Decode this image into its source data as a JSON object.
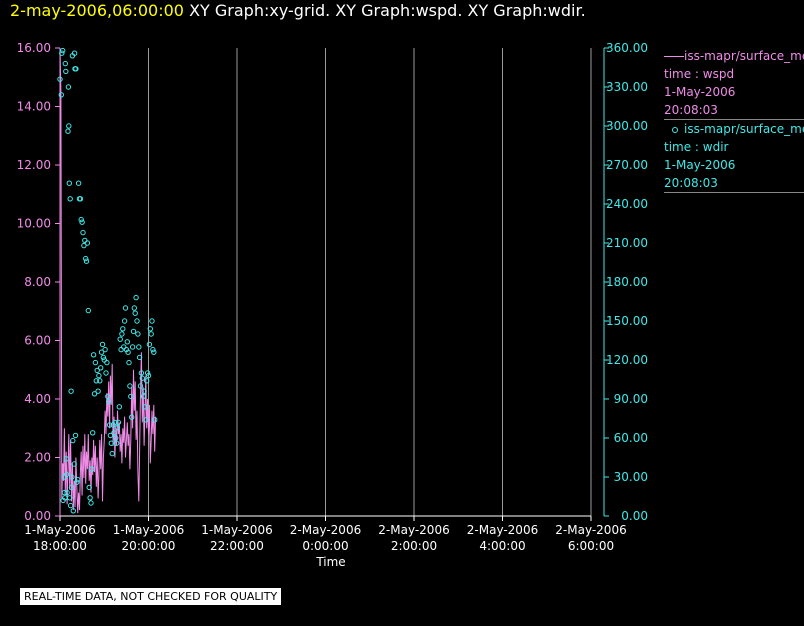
{
  "header": {
    "timestamp": "2-may-2006,06:00:00",
    "graphs": "XY Graph:xy-grid.  XY Graph:wspd.  XY Graph:wdir."
  },
  "colors": {
    "wspd": "#f08ce8",
    "wdir": "#40e8e8",
    "left_axis": "#f08ce8",
    "right_axis": "#40e8e8",
    "grid": "#9a9a9a",
    "timestamp": "#ffff00"
  },
  "legend": [
    {
      "name": "iss-mapr/surface_met",
      "time_label": "time : wspd",
      "date": "1-May-2006",
      "time": "20:08:03",
      "marker": "line"
    },
    {
      "name": "iss-mapr/surface_met",
      "time_label": "time : wdir",
      "date": "1-May-2006",
      "time": "20:08:03",
      "marker": "circle"
    }
  ],
  "footer": {
    "disclaimer": "REAL-TIME DATA, NOT CHECKED FOR QUALITY"
  },
  "chart_data": {
    "type": "line",
    "xlabel": "Time",
    "x_ticks": [
      {
        "hours": 0,
        "date": "1-May-2006",
        "time": "18:00:00"
      },
      {
        "hours": 2,
        "date": "1-May-2006",
        "time": "20:00:00"
      },
      {
        "hours": 4,
        "date": "1-May-2006",
        "time": "22:00:00"
      },
      {
        "hours": 6,
        "date": "2-May-2006",
        "time": "0:00:00"
      },
      {
        "hours": 8,
        "date": "2-May-2006",
        "time": "2:00:00"
      },
      {
        "hours": 10,
        "date": "2-May-2006",
        "time": "4:00:00"
      },
      {
        "hours": 12,
        "date": "2-May-2006",
        "time": "6:00:00"
      }
    ],
    "x_range_hours": [
      0,
      12
    ],
    "grid": true,
    "y_left": {
      "range": [
        0,
        16
      ],
      "ticks": [
        "0.00",
        "2.00",
        "4.00",
        "6.00",
        "8.00",
        "10.00",
        "12.00",
        "14.00",
        "16.00"
      ]
    },
    "y_right": {
      "range": [
        0,
        360
      ],
      "ticks": [
        "0.00",
        "30.00",
        "60.00",
        "90.00",
        "120.00",
        "150.00",
        "180.00",
        "210.00",
        "240.00",
        "270.00",
        "300.00",
        "330.00",
        "360.00"
      ]
    },
    "series": [
      {
        "key": "wspd",
        "axis": "left",
        "style": "line",
        "points": [
          [
            0.0,
            16.0
          ],
          [
            0.02,
            14.5
          ],
          [
            0.04,
            0.6
          ],
          [
            0.06,
            1.8
          ],
          [
            0.08,
            1.2
          ],
          [
            0.1,
            3.0
          ],
          [
            0.12,
            0.8
          ],
          [
            0.14,
            2.2
          ],
          [
            0.16,
            0.4
          ],
          [
            0.18,
            1.6
          ],
          [
            0.2,
            2.8
          ],
          [
            0.22,
            0.9
          ],
          [
            0.24,
            2.6
          ],
          [
            0.26,
            0.5
          ],
          [
            0.28,
            1.8
          ],
          [
            0.3,
            0.2
          ],
          [
            0.32,
            1.2
          ],
          [
            0.34,
            0.3
          ],
          [
            0.36,
            2.0
          ],
          [
            0.38,
            1.0
          ],
          [
            0.4,
            0.1
          ],
          [
            0.42,
            0.8
          ],
          [
            0.44,
            0.2
          ],
          [
            0.46,
            1.5
          ],
          [
            0.48,
            2.2
          ],
          [
            0.5,
            0.7
          ],
          [
            0.52,
            2.4
          ],
          [
            0.54,
            1.3
          ],
          [
            0.56,
            2.8
          ],
          [
            0.58,
            1.1
          ],
          [
            0.6,
            2.2
          ],
          [
            0.62,
            1.6
          ],
          [
            0.64,
            2.8
          ],
          [
            0.66,
            1.2
          ],
          [
            0.68,
            1.9
          ],
          [
            0.7,
            0.8
          ],
          [
            0.72,
            2.0
          ],
          [
            0.74,
            1.4
          ],
          [
            0.76,
            2.6
          ],
          [
            0.78,
            1.5
          ],
          [
            0.8,
            2.4
          ],
          [
            0.82,
            1.0
          ],
          [
            0.84,
            2.0
          ],
          [
            0.86,
            0.6
          ],
          [
            0.88,
            1.4
          ],
          [
            0.9,
            2.6
          ],
          [
            0.92,
            1.6
          ],
          [
            0.94,
            2.8
          ],
          [
            0.96,
            0.5
          ],
          [
            0.98,
            2.0
          ],
          [
            1.0,
            2.6
          ],
          [
            1.02,
            3.6
          ],
          [
            1.04,
            2.8
          ],
          [
            1.06,
            4.2
          ],
          [
            1.08,
            3.4
          ],
          [
            1.1,
            4.6
          ],
          [
            1.12,
            3.0
          ],
          [
            1.14,
            4.8
          ],
          [
            1.16,
            3.8
          ],
          [
            1.18,
            5.2
          ],
          [
            1.2,
            2.4
          ],
          [
            1.22,
            3.4
          ],
          [
            1.24,
            2.0
          ],
          [
            1.26,
            3.0
          ],
          [
            1.28,
            2.4
          ],
          [
            1.3,
            3.6
          ],
          [
            1.32,
            2.8
          ],
          [
            1.34,
            3.2
          ],
          [
            1.36,
            2.2
          ],
          [
            1.38,
            2.8
          ],
          [
            1.4,
            1.8
          ],
          [
            1.42,
            3.0
          ],
          [
            1.44,
            2.5
          ],
          [
            1.46,
            3.4
          ],
          [
            1.48,
            2.0
          ],
          [
            1.5,
            2.6
          ],
          [
            1.52,
            3.2
          ],
          [
            1.54,
            2.4
          ],
          [
            1.56,
            2.8
          ],
          [
            1.58,
            1.6
          ],
          [
            1.6,
            2.6
          ],
          [
            1.62,
            4.4
          ],
          [
            1.64,
            3.0
          ],
          [
            1.66,
            5.0
          ],
          [
            1.68,
            3.6
          ],
          [
            1.7,
            4.6
          ],
          [
            1.72,
            2.6
          ],
          [
            1.74,
            3.6
          ],
          [
            1.76,
            1.5
          ],
          [
            1.78,
            0.5
          ],
          [
            1.8,
            2.2
          ],
          [
            1.82,
            4.2
          ],
          [
            1.84,
            5.6
          ],
          [
            1.86,
            3.2
          ],
          [
            1.88,
            4.4
          ],
          [
            1.9,
            2.4
          ],
          [
            1.92,
            3.6
          ],
          [
            1.94,
            4.8
          ],
          [
            1.96,
            3.0
          ],
          [
            1.98,
            4.0
          ],
          [
            2.0,
            2.8
          ],
          [
            2.02,
            3.8
          ],
          [
            2.04,
            1.8
          ],
          [
            2.06,
            2.6
          ],
          [
            2.08,
            3.6
          ],
          [
            2.1,
            2.8
          ],
          [
            2.12,
            3.8
          ],
          [
            2.14,
            2.2
          ],
          [
            2.16,
            3.4
          ]
        ]
      },
      {
        "key": "wdir",
        "axis": "right",
        "style": "circle",
        "points": [
          [
            0.0,
            336
          ],
          [
            0.03,
            324
          ],
          [
            0.04,
            356
          ],
          [
            0.06,
            358
          ],
          [
            0.07,
            12
          ],
          [
            0.09,
            30
          ],
          [
            0.1,
            18
          ],
          [
            0.11,
            14
          ],
          [
            0.12,
            348
          ],
          [
            0.13,
            342
          ],
          [
            0.14,
            44
          ],
          [
            0.15,
            32
          ],
          [
            0.16,
            18
          ],
          [
            0.18,
            296
          ],
          [
            0.19,
            330
          ],
          [
            0.2,
            300
          ],
          [
            0.21,
            256
          ],
          [
            0.22,
            14
          ],
          [
            0.23,
            244
          ],
          [
            0.24,
            8
          ],
          [
            0.25,
            96
          ],
          [
            0.26,
            22
          ],
          [
            0.27,
            30
          ],
          [
            0.28,
            354
          ],
          [
            0.29,
            58
          ],
          [
            0.3,
            4
          ],
          [
            0.32,
            40
          ],
          [
            0.33,
            356
          ],
          [
            0.34,
            344
          ],
          [
            0.35,
            62
          ],
          [
            0.36,
            344
          ],
          [
            0.38,
            26
          ],
          [
            0.4,
            28
          ],
          [
            0.42,
            256
          ],
          [
            0.44,
            244
          ],
          [
            0.46,
            244
          ],
          [
            0.48,
            228
          ],
          [
            0.5,
            226
          ],
          [
            0.52,
            218
          ],
          [
            0.54,
            208
          ],
          [
            0.56,
            212
          ],
          [
            0.58,
            198
          ],
          [
            0.6,
            196
          ],
          [
            0.62,
            210
          ],
          [
            0.64,
            158
          ],
          [
            0.66,
            22
          ],
          [
            0.68,
            14
          ],
          [
            0.7,
            10
          ],
          [
            0.72,
            36
          ],
          [
            0.74,
            64
          ],
          [
            0.76,
            124
          ],
          [
            0.78,
            94
          ],
          [
            0.8,
            118
          ],
          [
            0.82,
            104
          ],
          [
            0.84,
            112
          ],
          [
            0.86,
            96
          ],
          [
            0.88,
            108
          ],
          [
            0.9,
            104
          ],
          [
            0.92,
            114
          ],
          [
            0.94,
            126
          ],
          [
            0.96,
            132
          ],
          [
            0.98,
            122
          ],
          [
            1.0,
            120
          ],
          [
            1.02,
            128
          ],
          [
            1.04,
            110
          ],
          [
            1.06,
            118
          ],
          [
            1.08,
            92
          ],
          [
            1.1,
            88
          ],
          [
            1.12,
            70
          ],
          [
            1.14,
            62
          ],
          [
            1.16,
            56
          ],
          [
            1.18,
            48
          ],
          [
            1.2,
            70
          ],
          [
            1.22,
            64
          ],
          [
            1.24,
            72
          ],
          [
            1.26,
            60
          ],
          [
            1.28,
            56
          ],
          [
            1.3,
            68
          ],
          [
            1.32,
            72
          ],
          [
            1.34,
            84
          ],
          [
            1.36,
            136
          ],
          [
            1.38,
            128
          ],
          [
            1.4,
            140
          ],
          [
            1.42,
            144
          ],
          [
            1.44,
            130
          ],
          [
            1.46,
            150
          ],
          [
            1.48,
            160
          ],
          [
            1.5,
            128
          ],
          [
            1.52,
            134
          ],
          [
            1.54,
            126
          ],
          [
            1.56,
            118
          ],
          [
            1.58,
            100
          ],
          [
            1.6,
            92
          ],
          [
            1.62,
            76
          ],
          [
            1.64,
            130
          ],
          [
            1.66,
            142
          ],
          [
            1.68,
            160
          ],
          [
            1.7,
            156
          ],
          [
            1.72,
            168
          ],
          [
            1.74,
            150
          ],
          [
            1.76,
            140
          ],
          [
            1.78,
            130
          ],
          [
            1.8,
            122
          ],
          [
            1.82,
            100
          ],
          [
            1.84,
            110
          ],
          [
            1.86,
            106
          ],
          [
            1.88,
            92
          ],
          [
            1.9,
            96
          ],
          [
            1.92,
            84
          ],
          [
            1.94,
            74
          ],
          [
            1.96,
            104
          ],
          [
            1.98,
            110
          ],
          [
            2.0,
            108
          ],
          [
            2.02,
            132
          ],
          [
            2.04,
            144
          ],
          [
            2.06,
            140
          ],
          [
            2.08,
            150
          ],
          [
            2.1,
            128
          ],
          [
            2.12,
            126
          ],
          [
            2.14,
            74
          ]
        ]
      }
    ]
  }
}
